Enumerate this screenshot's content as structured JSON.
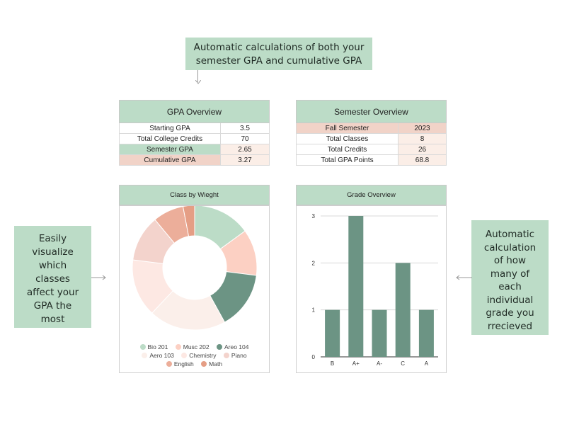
{
  "callouts": {
    "top": {
      "line1": "Automatic calculations of both your",
      "line2": "semester GPA and cumulative GPA"
    },
    "left": [
      "Easily",
      "visualize",
      "which",
      "classes",
      "affect your",
      "GPA the",
      "most"
    ],
    "right": [
      "Automatic",
      "calculation",
      "of how",
      "many of",
      "each",
      "individual",
      "grade you",
      "rrecieved"
    ]
  },
  "gpa_overview": {
    "title": "GPA Overview",
    "rows": [
      {
        "label": "Starting GPA",
        "value": "3.5"
      },
      {
        "label": "Total College Credits",
        "value": "70"
      },
      {
        "label": "Semester GPA",
        "value": "2.65"
      },
      {
        "label": "Cumulative GPA",
        "value": "3.27"
      }
    ]
  },
  "semester_overview": {
    "title": "Semester Overview",
    "rows": [
      {
        "label": "Fall Semester",
        "value": "2023"
      },
      {
        "label": "Total Classes",
        "value": "8"
      },
      {
        "label": "Total Credits",
        "value": "26"
      },
      {
        "label": "Total GPA Points",
        "value": "68.8"
      }
    ]
  },
  "colors": {
    "sage": "#bcdcc7",
    "dark_green": "#6c9484",
    "peach": "#fcd0c3",
    "blush": "#f3d3cc",
    "cream": "#fde8e3",
    "pale": "#fbefea",
    "salmon": "#ecae9a",
    "coral": "#e59e85"
  },
  "chart_data": [
    {
      "type": "pie",
      "title": "Class by Wieght",
      "categories": [
        "Bio 201",
        "Musc 202",
        "Areo 104",
        "Aero 103",
        "Chemistry",
        "Piano",
        "English",
        "Math"
      ],
      "values": [
        15,
        12,
        15,
        20,
        15,
        12,
        8,
        3
      ],
      "colors": [
        "#bcdcc7",
        "#fcd0c3",
        "#6c9484",
        "#fbefea",
        "#fde8e3",
        "#f3d3cc",
        "#ecae9a",
        "#e59e85"
      ],
      "legend": "bottom"
    },
    {
      "type": "bar",
      "title": "Grade Overview",
      "categories": [
        "B",
        "A+",
        "A-",
        "C",
        "A"
      ],
      "values": [
        1,
        3,
        1,
        2,
        1
      ],
      "yticks": [
        "0",
        "1",
        "2",
        "3"
      ],
      "ylim": [
        0,
        3
      ],
      "grid": true,
      "color": "#6c9484"
    }
  ]
}
